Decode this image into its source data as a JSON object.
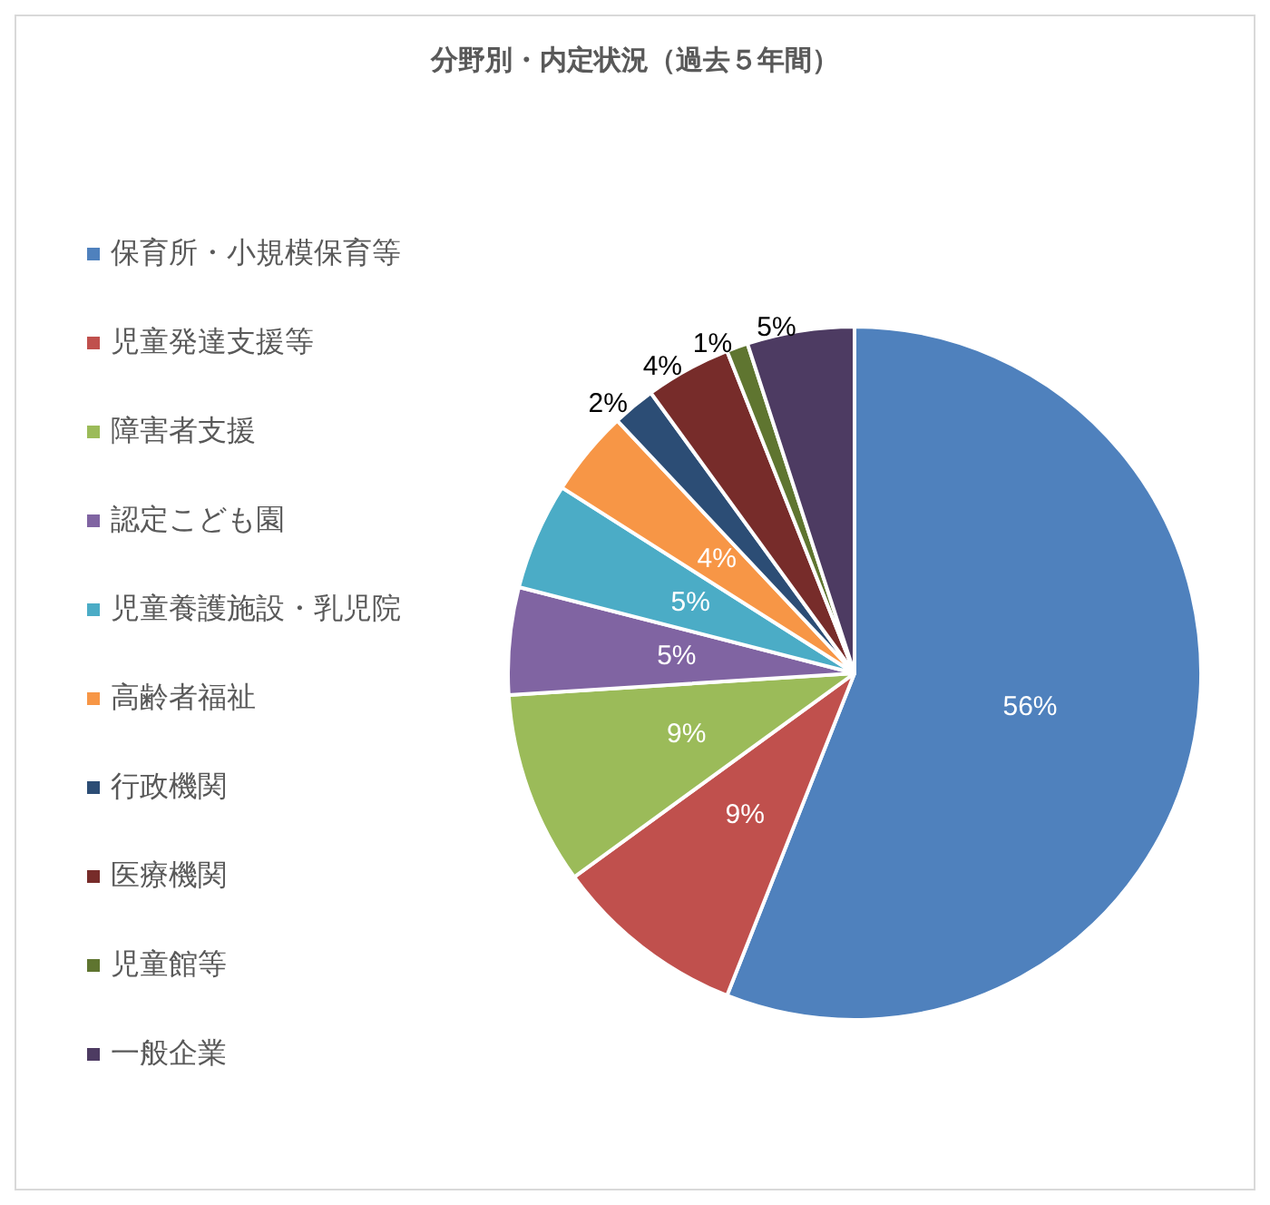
{
  "chart_data": {
    "type": "pie",
    "title": "分野別・内定状況（過去５年間）",
    "categories": [
      "保育所・小規模保育等",
      "児童発達支援等",
      "障害者支援",
      "認定こども園",
      "児童養護施設・乳児院",
      "高齢者福祉",
      "行政機関",
      "医療機関",
      "児童館等",
      "一般企業"
    ],
    "values": [
      56,
      9,
      9,
      5,
      5,
      4,
      2,
      4,
      1,
      5
    ],
    "colors": [
      "#4f81bd",
      "#c0504d",
      "#9bbb59",
      "#8064a2",
      "#4bacc6",
      "#f79646",
      "#2c4d75",
      "#772c2a",
      "#5f7530",
      "#4d3b62"
    ],
    "value_labels": [
      "56%",
      "9%",
      "9%",
      "5%",
      "5%",
      "4%",
      "2%",
      "4%",
      "1%",
      "5%"
    ],
    "legend": "left"
  }
}
